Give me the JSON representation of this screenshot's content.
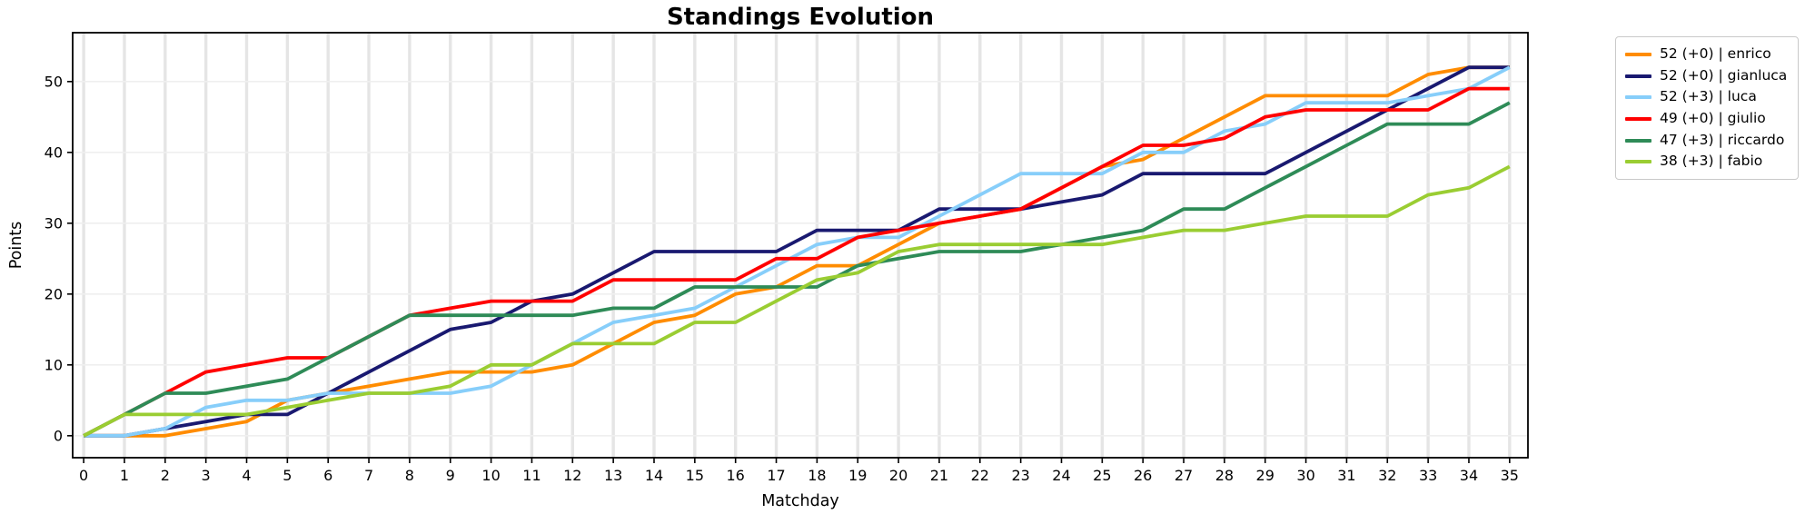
{
  "title": "Standings Evolution",
  "chart_data": {
    "type": "line",
    "title": "Standings Evolution",
    "xlabel": "Matchday",
    "ylabel": "Points",
    "x": [
      0,
      1,
      2,
      3,
      4,
      5,
      6,
      7,
      8,
      9,
      10,
      11,
      12,
      13,
      14,
      15,
      16,
      17,
      18,
      19,
      20,
      21,
      22,
      23,
      24,
      25,
      26,
      27,
      28,
      29,
      30,
      31,
      32,
      33,
      34,
      35
    ],
    "xticks": [
      "0",
      "1",
      "2",
      "3",
      "4",
      "5",
      "6",
      "7",
      "8",
      "9",
      "10",
      "11",
      "12",
      "13",
      "14",
      "15",
      "16",
      "17",
      "18",
      "19",
      "20",
      "21",
      "22",
      "23",
      "24",
      "25",
      "26",
      "27",
      "28",
      "29",
      "30",
      "31",
      "32",
      "33",
      "34",
      "35"
    ],
    "yticks": [
      "0",
      "10",
      "20",
      "30",
      "40",
      "50"
    ],
    "ytick_values": [
      0,
      10,
      20,
      30,
      40,
      50
    ],
    "xlim": [
      -0.27,
      35.45
    ],
    "ylim": [
      -3.1,
      56.9
    ],
    "grid": {
      "vertical": true,
      "horizontal": true
    },
    "grid_vertical_color": "#e5e5e5",
    "grid_horizontal_color": "#efefef",
    "spine_color": "#000000",
    "legend_position": "outside-right",
    "series": [
      {
        "name": "enrico",
        "label": "52 (+0) | enrico",
        "color": "#FF8C00",
        "values": [
          0,
          0,
          0,
          1,
          2,
          5,
          6,
          7,
          8,
          9,
          9,
          9,
          10,
          13,
          16,
          17,
          20,
          21,
          24,
          24,
          27,
          30,
          31,
          32,
          35,
          38,
          39,
          42,
          45,
          48,
          48,
          48,
          48,
          51,
          52,
          52
        ]
      },
      {
        "name": "gianluca",
        "label": "52 (+0) | gianluca",
        "color": "#191970",
        "values": [
          0,
          0,
          1,
          2,
          3,
          3,
          6,
          9,
          12,
          15,
          16,
          19,
          20,
          23,
          26,
          26,
          26,
          26,
          29,
          29,
          29,
          32,
          32,
          32,
          33,
          34,
          37,
          37,
          37,
          37,
          40,
          43,
          46,
          49,
          52,
          52
        ]
      },
      {
        "name": "luca",
        "label": "52 (+3) | luca",
        "color": "#87CEFA",
        "values": [
          0,
          0,
          1,
          4,
          5,
          5,
          6,
          6,
          6,
          6,
          7,
          10,
          13,
          16,
          17,
          18,
          21,
          24,
          27,
          28,
          28,
          31,
          34,
          37,
          37,
          37,
          40,
          40,
          43,
          44,
          47,
          47,
          47,
          48,
          49,
          52
        ]
      },
      {
        "name": "giulio",
        "label": "49 (+0) | giulio",
        "color": "#FF0000",
        "values": [
          0,
          3,
          6,
          9,
          10,
          11,
          11,
          14,
          17,
          18,
          19,
          19,
          19,
          22,
          22,
          22,
          22,
          25,
          25,
          28,
          29,
          30,
          31,
          32,
          35,
          38,
          41,
          41,
          42,
          45,
          46,
          46,
          46,
          46,
          49,
          49
        ]
      },
      {
        "name": "riccardo",
        "label": "47 (+3) | riccardo",
        "color": "#2E8B57",
        "values": [
          0,
          3,
          6,
          6,
          7,
          8,
          11,
          14,
          17,
          17,
          17,
          17,
          17,
          18,
          18,
          21,
          21,
          21,
          21,
          24,
          25,
          26,
          26,
          26,
          27,
          28,
          29,
          32,
          32,
          35,
          38,
          41,
          44,
          44,
          44,
          47
        ]
      },
      {
        "name": "fabio",
        "label": "38 (+3) | fabio",
        "color": "#9ACD32",
        "values": [
          0,
          3,
          3,
          3,
          3,
          4,
          5,
          6,
          6,
          7,
          10,
          10,
          13,
          13,
          13,
          16,
          16,
          19,
          22,
          23,
          26,
          27,
          27,
          27,
          27,
          27,
          28,
          29,
          29,
          30,
          31,
          31,
          31,
          34,
          35,
          38
        ]
      }
    ]
  }
}
